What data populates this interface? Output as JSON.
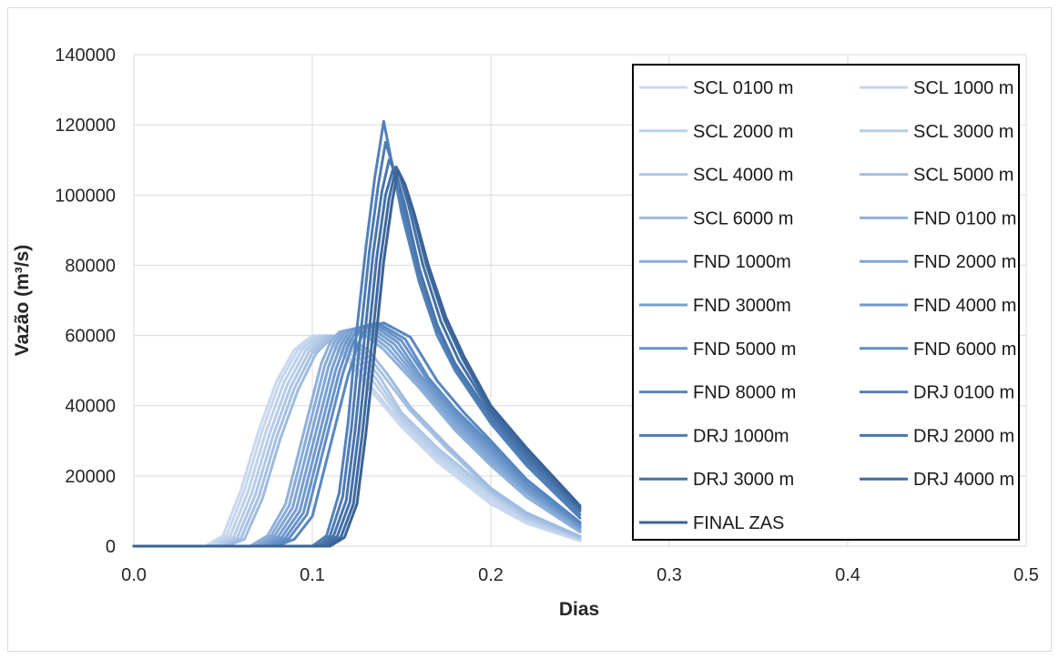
{
  "chart_data": {
    "type": "line",
    "title": "",
    "xlabel": "Dias",
    "ylabel": "Vazão (m³/s)",
    "xlim": [
      0,
      0.5
    ],
    "ylim": [
      0,
      140000
    ],
    "x_ticks": [
      "0.0",
      "0.1",
      "0.2",
      "0.3",
      "0.4",
      "0.5"
    ],
    "y_ticks": [
      "0",
      "20000",
      "40000",
      "60000",
      "80000",
      "100000",
      "120000",
      "140000"
    ],
    "grid": true,
    "legend_position": "right",
    "series": [
      {
        "name": "SCL 0100 m",
        "color": "#c9d9ee",
        "x": [
          0,
          0.04,
          0.05,
          0.06,
          0.07,
          0.08,
          0.09,
          0.1,
          0.11,
          0.12,
          0.13,
          0.15,
          0.17,
          0.2,
          0.22,
          0.25
        ],
        "y": [
          0,
          0,
          3000,
          16000,
          33000,
          47000,
          56000,
          60000,
          58000,
          53000,
          46000,
          34000,
          24000,
          12000,
          6500,
          1500
        ]
      },
      {
        "name": "SCL 1000 m",
        "color": "#c5d6ec",
        "x": [
          0,
          0.042,
          0.052,
          0.062,
          0.072,
          0.082,
          0.092,
          0.102,
          0.112,
          0.122,
          0.132,
          0.15,
          0.17,
          0.2,
          0.22,
          0.25
        ],
        "y": [
          0,
          0,
          3000,
          16000,
          33000,
          47000,
          56000,
          60000,
          58000,
          53000,
          46000,
          35000,
          25000,
          13000,
          7000,
          1800
        ]
      },
      {
        "name": "SCL 2000 m",
        "color": "#bdd1ea",
        "x": [
          0,
          0.044,
          0.054,
          0.064,
          0.074,
          0.084,
          0.094,
          0.104,
          0.114,
          0.124,
          0.134,
          0.15,
          0.17,
          0.2,
          0.22,
          0.25
        ],
        "y": [
          0,
          0,
          2800,
          15500,
          32500,
          46500,
          55800,
          60000,
          58200,
          53500,
          47000,
          36000,
          26000,
          14000,
          7500,
          2000
        ]
      },
      {
        "name": "SCL 3000 m",
        "color": "#b6cce8",
        "x": [
          0,
          0.046,
          0.056,
          0.066,
          0.076,
          0.086,
          0.096,
          0.106,
          0.116,
          0.126,
          0.136,
          0.15,
          0.17,
          0.2,
          0.22,
          0.25
        ],
        "y": [
          0,
          0,
          2600,
          15000,
          32000,
          46000,
          55500,
          60000,
          58400,
          54000,
          47500,
          37000,
          27000,
          15000,
          8000,
          2200
        ]
      },
      {
        "name": "SCL 4000 m",
        "color": "#aec6e5",
        "x": [
          0,
          0.048,
          0.058,
          0.068,
          0.078,
          0.088,
          0.098,
          0.108,
          0.118,
          0.128,
          0.138,
          0.15,
          0.17,
          0.2,
          0.22,
          0.25
        ],
        "y": [
          0,
          0,
          2400,
          14500,
          31500,
          45500,
          55200,
          60000,
          58600,
          54500,
          48000,
          38000,
          28000,
          15500,
          8500,
          2400
        ]
      },
      {
        "name": "SCL 5000 m",
        "color": "#a6c0e2",
        "x": [
          0,
          0.05,
          0.06,
          0.07,
          0.08,
          0.09,
          0.1,
          0.11,
          0.12,
          0.13,
          0.14,
          0.155,
          0.175,
          0.2,
          0.22,
          0.25
        ],
        "y": [
          0,
          0,
          2200,
          14000,
          31000,
          45000,
          55000,
          60000,
          58800,
          55000,
          48500,
          38500,
          28000,
          16000,
          9000,
          2600
        ]
      },
      {
        "name": "SCL 6000 m",
        "color": "#9ebbdf",
        "x": [
          0,
          0.052,
          0.062,
          0.072,
          0.082,
          0.092,
          0.102,
          0.112,
          0.122,
          0.132,
          0.142,
          0.155,
          0.175,
          0.2,
          0.22,
          0.25
        ],
        "y": [
          0,
          0,
          2000,
          13500,
          30500,
          44500,
          54800,
          60000,
          59000,
          55500,
          49000,
          39500,
          29000,
          16500,
          9500,
          2800
        ]
      },
      {
        "name": "FND 0100 m",
        "color": "#8fb1d9",
        "x": [
          0,
          0.065,
          0.075,
          0.085,
          0.095,
          0.105,
          0.11,
          0.115,
          0.125,
          0.14,
          0.16,
          0.18,
          0.2,
          0.22,
          0.25
        ],
        "y": [
          0,
          0,
          3000,
          12000,
          32000,
          52000,
          58000,
          61000,
          62000,
          56000,
          45000,
          33000,
          23000,
          14000,
          4000
        ]
      },
      {
        "name": "FND 1000m",
        "color": "#87abd6",
        "x": [
          0,
          0.067,
          0.077,
          0.087,
          0.097,
          0.107,
          0.112,
          0.117,
          0.127,
          0.142,
          0.16,
          0.18,
          0.2,
          0.22,
          0.25
        ],
        "y": [
          0,
          0,
          3000,
          11500,
          31500,
          51500,
          57800,
          61200,
          62300,
          56500,
          46000,
          34000,
          24000,
          15000,
          4500
        ]
      },
      {
        "name": "FND 2000 m",
        "color": "#7fa5d3",
        "x": [
          0,
          0.069,
          0.079,
          0.089,
          0.099,
          0.109,
          0.114,
          0.119,
          0.129,
          0.144,
          0.16,
          0.18,
          0.2,
          0.22,
          0.25
        ],
        "y": [
          0,
          0,
          3000,
          11000,
          31000,
          51000,
          57600,
          61400,
          62600,
          57000,
          47000,
          35000,
          25000,
          15500,
          5000
        ]
      },
      {
        "name": "FND 3000m",
        "color": "#779fd0",
        "x": [
          0,
          0.071,
          0.081,
          0.091,
          0.101,
          0.111,
          0.116,
          0.121,
          0.131,
          0.146,
          0.16,
          0.18,
          0.2,
          0.22,
          0.25
        ],
        "y": [
          0,
          0,
          2800,
          10500,
          30500,
          50500,
          57400,
          61600,
          62900,
          57500,
          48000,
          36000,
          26000,
          16000,
          5300
        ]
      },
      {
        "name": "FND 4000 m",
        "color": "#6f99cc",
        "x": [
          0,
          0.073,
          0.083,
          0.093,
          0.103,
          0.113,
          0.118,
          0.123,
          0.133,
          0.148,
          0.16,
          0.18,
          0.2,
          0.22,
          0.25
        ],
        "y": [
          0,
          0,
          2600,
          10000,
          30000,
          50000,
          57200,
          61800,
          63200,
          58000,
          49000,
          37000,
          27000,
          16500,
          5600
        ]
      },
      {
        "name": "FND 5000 m",
        "color": "#6793c8",
        "x": [
          0,
          0.075,
          0.085,
          0.095,
          0.105,
          0.115,
          0.12,
          0.125,
          0.135,
          0.15,
          0.165,
          0.18,
          0.2,
          0.22,
          0.25
        ],
        "y": [
          0,
          0,
          2400,
          9500,
          29500,
          49500,
          57000,
          62000,
          63400,
          58500,
          47000,
          38000,
          28000,
          17500,
          6000
        ]
      },
      {
        "name": "FND 6000 m",
        "color": "#5f8dc4",
        "x": [
          0,
          0.077,
          0.087,
          0.097,
          0.107,
          0.117,
          0.122,
          0.127,
          0.137,
          0.152,
          0.165,
          0.18,
          0.2,
          0.22,
          0.25
        ],
        "y": [
          0,
          0,
          2200,
          9000,
          29000,
          49000,
          56800,
          62200,
          63500,
          59000,
          48000,
          39000,
          29000,
          18000,
          6300
        ]
      },
      {
        "name": "FND 8000 m",
        "color": "#5887bf",
        "x": [
          0,
          0.08,
          0.09,
          0.1,
          0.11,
          0.12,
          0.125,
          0.13,
          0.14,
          0.155,
          0.17,
          0.185,
          0.2,
          0.22,
          0.25
        ],
        "y": [
          0,
          0,
          2000,
          8500,
          28500,
          48500,
          56600,
          62400,
          63600,
          59500,
          47000,
          38000,
          30000,
          19000,
          6800
        ]
      },
      {
        "name": "DRJ 0100 m",
        "color": "#5381ba",
        "x": [
          0,
          0.1,
          0.108,
          0.115,
          0.12,
          0.125,
          0.13,
          0.135,
          0.14,
          0.145,
          0.15,
          0.16,
          0.17,
          0.18,
          0.2,
          0.22,
          0.25
        ],
        "y": [
          0,
          0,
          3000,
          15000,
          35000,
          62000,
          85000,
          105000,
          121000,
          108000,
          95000,
          75000,
          60000,
          50000,
          35000,
          23000,
          8000
        ]
      },
      {
        "name": "DRJ 1000m",
        "color": "#4e7cb4",
        "x": [
          0,
          0.102,
          0.11,
          0.117,
          0.122,
          0.127,
          0.132,
          0.137,
          0.141,
          0.146,
          0.151,
          0.16,
          0.17,
          0.18,
          0.2,
          0.22,
          0.25
        ],
        "y": [
          0,
          0,
          3000,
          14000,
          34000,
          60000,
          84000,
          103000,
          115000,
          107000,
          96000,
          77000,
          62000,
          51000,
          36000,
          24000,
          9000
        ]
      },
      {
        "name": "DRJ 2000 m",
        "color": "#4976ad",
        "x": [
          0,
          0.104,
          0.112,
          0.119,
          0.124,
          0.129,
          0.134,
          0.139,
          0.143,
          0.147,
          0.152,
          0.16,
          0.17,
          0.18,
          0.2,
          0.22,
          0.25
        ],
        "y": [
          0,
          0,
          3000,
          13000,
          33000,
          58000,
          83000,
          101000,
          110000,
          106000,
          97000,
          79000,
          63000,
          52000,
          37000,
          25000,
          10000
        ]
      },
      {
        "name": "DRJ 3000 m",
        "color": "#4470a6",
        "x": [
          0,
          0.106,
          0.114,
          0.121,
          0.126,
          0.131,
          0.136,
          0.141,
          0.145,
          0.149,
          0.154,
          0.162,
          0.172,
          0.182,
          0.2,
          0.22,
          0.25
        ],
        "y": [
          0,
          0,
          2800,
          12500,
          32500,
          57000,
          82000,
          100000,
          107000,
          105500,
          97000,
          80000,
          64000,
          53000,
          38000,
          26000,
          10500
        ]
      },
      {
        "name": "DRJ 4000 m",
        "color": "#3f6a9f",
        "x": [
          0,
          0.108,
          0.116,
          0.123,
          0.128,
          0.133,
          0.138,
          0.143,
          0.147,
          0.151,
          0.156,
          0.164,
          0.174,
          0.184,
          0.2,
          0.22,
          0.25
        ],
        "y": [
          0,
          0,
          2600,
          12000,
          32000,
          56000,
          81000,
          99000,
          108000,
          104000,
          96000,
          80000,
          64500,
          53500,
          39000,
          27000,
          11000
        ]
      },
      {
        "name": "FINAL ZAS",
        "color": "#3a6397",
        "x": [
          0,
          0.11,
          0.118,
          0.125,
          0.13,
          0.135,
          0.14,
          0.145,
          0.148,
          0.152,
          0.157,
          0.165,
          0.175,
          0.185,
          0.2,
          0.22,
          0.25
        ],
        "y": [
          0,
          0,
          2500,
          12000,
          32000,
          56000,
          81000,
          99000,
          107000,
          103000,
          95000,
          80000,
          65000,
          54000,
          40000,
          28000,
          11500
        ]
      }
    ]
  }
}
